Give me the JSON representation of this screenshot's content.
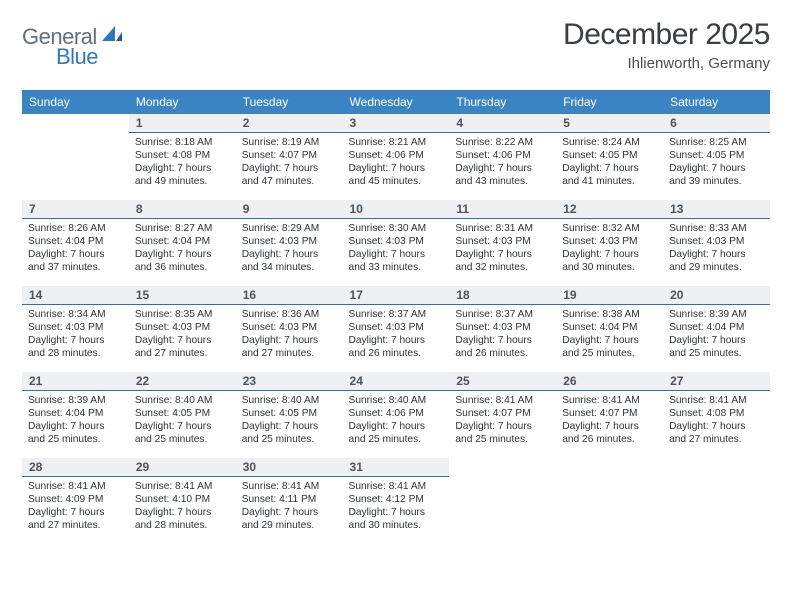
{
  "brand": {
    "name_a": "General",
    "name_b": "Blue"
  },
  "title": "December 2025",
  "location": "Ihlienworth, Germany",
  "colors": {
    "header_bg": "#3b84c4",
    "header_text": "#ffffff",
    "daynum_bg": "#eef0f2",
    "daynum_border": "#2f6ea9",
    "body_text": "#2e3338",
    "title_text": "#3a3f44",
    "brand_a": "#5f7080",
    "brand_b": "#2f78bd"
  },
  "weekdays": [
    "Sunday",
    "Monday",
    "Tuesday",
    "Wednesday",
    "Thursday",
    "Friday",
    "Saturday"
  ],
  "weeks": [
    [
      null,
      {
        "n": "1",
        "sunrise": "8:18 AM",
        "sunset": "4:08 PM",
        "daylight": "7 hours and 49 minutes."
      },
      {
        "n": "2",
        "sunrise": "8:19 AM",
        "sunset": "4:07 PM",
        "daylight": "7 hours and 47 minutes."
      },
      {
        "n": "3",
        "sunrise": "8:21 AM",
        "sunset": "4:06 PM",
        "daylight": "7 hours and 45 minutes."
      },
      {
        "n": "4",
        "sunrise": "8:22 AM",
        "sunset": "4:06 PM",
        "daylight": "7 hours and 43 minutes."
      },
      {
        "n": "5",
        "sunrise": "8:24 AM",
        "sunset": "4:05 PM",
        "daylight": "7 hours and 41 minutes."
      },
      {
        "n": "6",
        "sunrise": "8:25 AM",
        "sunset": "4:05 PM",
        "daylight": "7 hours and 39 minutes."
      }
    ],
    [
      {
        "n": "7",
        "sunrise": "8:26 AM",
        "sunset": "4:04 PM",
        "daylight": "7 hours and 37 minutes."
      },
      {
        "n": "8",
        "sunrise": "8:27 AM",
        "sunset": "4:04 PM",
        "daylight": "7 hours and 36 minutes."
      },
      {
        "n": "9",
        "sunrise": "8:29 AM",
        "sunset": "4:03 PM",
        "daylight": "7 hours and 34 minutes."
      },
      {
        "n": "10",
        "sunrise": "8:30 AM",
        "sunset": "4:03 PM",
        "daylight": "7 hours and 33 minutes."
      },
      {
        "n": "11",
        "sunrise": "8:31 AM",
        "sunset": "4:03 PM",
        "daylight": "7 hours and 32 minutes."
      },
      {
        "n": "12",
        "sunrise": "8:32 AM",
        "sunset": "4:03 PM",
        "daylight": "7 hours and 30 minutes."
      },
      {
        "n": "13",
        "sunrise": "8:33 AM",
        "sunset": "4:03 PM",
        "daylight": "7 hours and 29 minutes."
      }
    ],
    [
      {
        "n": "14",
        "sunrise": "8:34 AM",
        "sunset": "4:03 PM",
        "daylight": "7 hours and 28 minutes."
      },
      {
        "n": "15",
        "sunrise": "8:35 AM",
        "sunset": "4:03 PM",
        "daylight": "7 hours and 27 minutes."
      },
      {
        "n": "16",
        "sunrise": "8:36 AM",
        "sunset": "4:03 PM",
        "daylight": "7 hours and 27 minutes."
      },
      {
        "n": "17",
        "sunrise": "8:37 AM",
        "sunset": "4:03 PM",
        "daylight": "7 hours and 26 minutes."
      },
      {
        "n": "18",
        "sunrise": "8:37 AM",
        "sunset": "4:03 PM",
        "daylight": "7 hours and 26 minutes."
      },
      {
        "n": "19",
        "sunrise": "8:38 AM",
        "sunset": "4:04 PM",
        "daylight": "7 hours and 25 minutes."
      },
      {
        "n": "20",
        "sunrise": "8:39 AM",
        "sunset": "4:04 PM",
        "daylight": "7 hours and 25 minutes."
      }
    ],
    [
      {
        "n": "21",
        "sunrise": "8:39 AM",
        "sunset": "4:04 PM",
        "daylight": "7 hours and 25 minutes."
      },
      {
        "n": "22",
        "sunrise": "8:40 AM",
        "sunset": "4:05 PM",
        "daylight": "7 hours and 25 minutes."
      },
      {
        "n": "23",
        "sunrise": "8:40 AM",
        "sunset": "4:05 PM",
        "daylight": "7 hours and 25 minutes."
      },
      {
        "n": "24",
        "sunrise": "8:40 AM",
        "sunset": "4:06 PM",
        "daylight": "7 hours and 25 minutes."
      },
      {
        "n": "25",
        "sunrise": "8:41 AM",
        "sunset": "4:07 PM",
        "daylight": "7 hours and 25 minutes."
      },
      {
        "n": "26",
        "sunrise": "8:41 AM",
        "sunset": "4:07 PM",
        "daylight": "7 hours and 26 minutes."
      },
      {
        "n": "27",
        "sunrise": "8:41 AM",
        "sunset": "4:08 PM",
        "daylight": "7 hours and 27 minutes."
      }
    ],
    [
      {
        "n": "28",
        "sunrise": "8:41 AM",
        "sunset": "4:09 PM",
        "daylight": "7 hours and 27 minutes."
      },
      {
        "n": "29",
        "sunrise": "8:41 AM",
        "sunset": "4:10 PM",
        "daylight": "7 hours and 28 minutes."
      },
      {
        "n": "30",
        "sunrise": "8:41 AM",
        "sunset": "4:11 PM",
        "daylight": "7 hours and 29 minutes."
      },
      {
        "n": "31",
        "sunrise": "8:41 AM",
        "sunset": "4:12 PM",
        "daylight": "7 hours and 30 minutes."
      },
      null,
      null,
      null
    ]
  ],
  "labels": {
    "sunrise": "Sunrise:",
    "sunset": "Sunset:",
    "daylight": "Daylight:"
  }
}
